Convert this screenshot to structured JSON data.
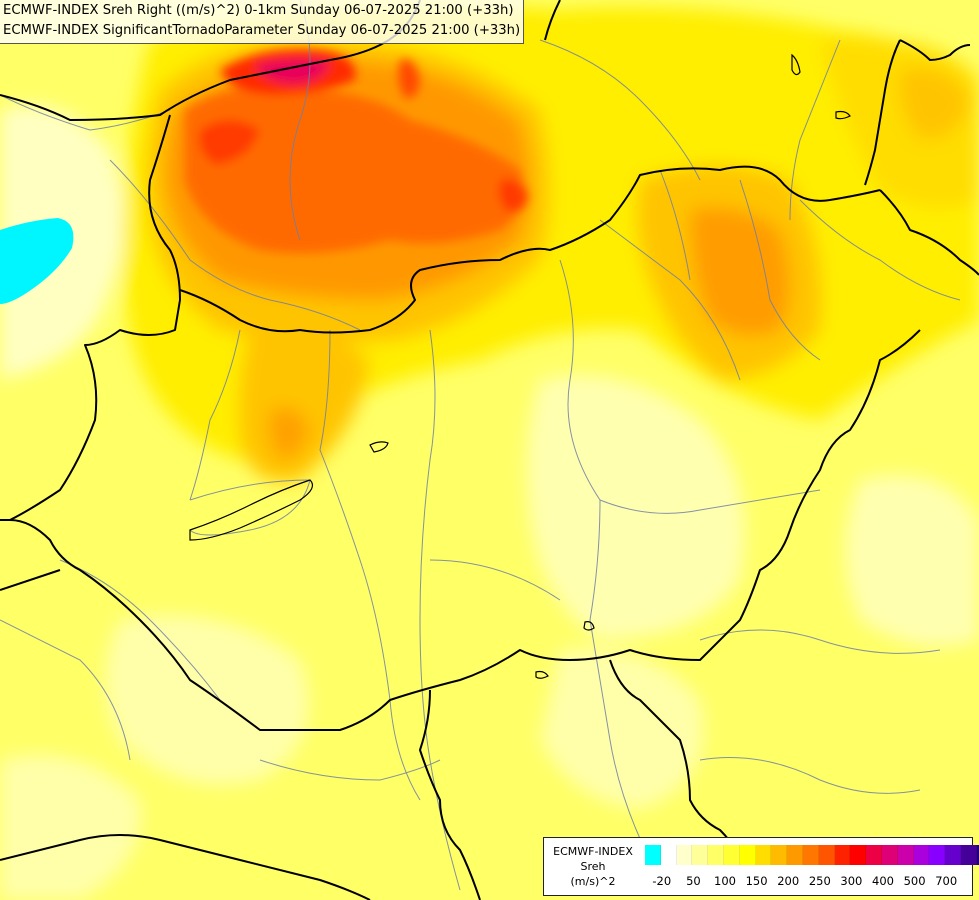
{
  "titles": {
    "line1": "ECMWF-INDEX Sreh Right ((m/s)^2) 0-1km Sunday 06-07-2025 21:00 (+33h)",
    "line2": "ECMWF-INDEX SignificantTornadoParameter Sunday 06-07-2025 21:00 (+33h)"
  },
  "legend": {
    "line1": "ECMWF-INDEX",
    "line2": "Sreh",
    "line3": "(m/s)^2",
    "colors": [
      "#00ffff",
      "#ffffff",
      "#ffffcc",
      "#ffff99",
      "#ffff66",
      "#ffff33",
      "#ffff00",
      "#ffdd00",
      "#ffbb00",
      "#ff9900",
      "#ff7700",
      "#ff5500",
      "#ff2200",
      "#ff0000",
      "#ee0044",
      "#dd0077",
      "#cc00aa",
      "#aa00dd",
      "#8800ff",
      "#6600cc",
      "#440099",
      "#220077"
    ],
    "ticks": [
      {
        "label": "-20",
        "pos": 1
      },
      {
        "label": "50",
        "pos": 3
      },
      {
        "label": "100",
        "pos": 5
      },
      {
        "label": "150",
        "pos": 7
      },
      {
        "label": "200",
        "pos": 9
      },
      {
        "label": "250",
        "pos": 11
      },
      {
        "label": "300",
        "pos": 13
      },
      {
        "label": "400",
        "pos": 15
      },
      {
        "label": "500",
        "pos": 17
      },
      {
        "label": "700",
        "pos": 19
      }
    ]
  },
  "field_colors": {
    "cyan": "#00f6ff",
    "pale": "#ffffc2",
    "lightyellow": "#ffff8a",
    "yellow": "#ffff33",
    "gold": "#ffe800",
    "amber": "#ffc400",
    "orange": "#ff9800",
    "darkorange": "#ff6a00",
    "red": "#ff2e00",
    "magenta": "#e8005a"
  }
}
